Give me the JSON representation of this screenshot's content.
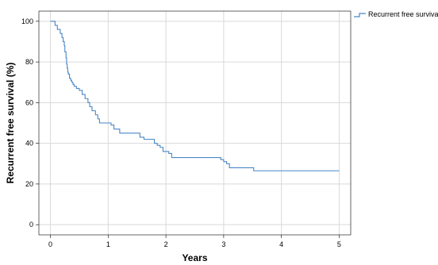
{
  "chart_data": {
    "type": "line",
    "step": true,
    "xlabel": "Years",
    "ylabel": "Recurrent free survival (%)",
    "xlim": [
      -0.2,
      5.2
    ],
    "ylim": [
      -5,
      105
    ],
    "xticks": [
      0,
      1,
      2,
      3,
      4,
      5
    ],
    "yticks": [
      0,
      20,
      40,
      60,
      80,
      100
    ],
    "grid": true,
    "legend_position": "top-right",
    "series": [
      {
        "name": "Recurrent free surviva",
        "color": "#4a87c5",
        "x": [
          0,
          0.08,
          0.12,
          0.17,
          0.2,
          0.22,
          0.24,
          0.25,
          0.27,
          0.28,
          0.29,
          0.3,
          0.31,
          0.33,
          0.35,
          0.37,
          0.39,
          0.41,
          0.45,
          0.5,
          0.55,
          0.6,
          0.65,
          0.68,
          0.72,
          0.78,
          0.82,
          0.85,
          1.05,
          1.1,
          1.2,
          1.55,
          1.62,
          1.8,
          1.85,
          1.9,
          1.95,
          2.05,
          2.1,
          2.95,
          3.0,
          3.05,
          3.1,
          3.52,
          5.0
        ],
        "y": [
          100,
          98,
          96,
          94,
          92,
          90,
          88,
          85,
          82,
          79,
          77,
          75,
          74,
          72,
          71,
          70,
          69,
          68,
          67,
          66,
          64,
          62,
          60,
          58,
          56,
          54,
          52,
          50,
          49,
          47,
          45,
          43,
          42,
          40,
          39,
          38,
          36,
          35,
          33,
          32,
          31,
          30,
          28,
          26.5,
          26.5
        ]
      }
    ]
  }
}
